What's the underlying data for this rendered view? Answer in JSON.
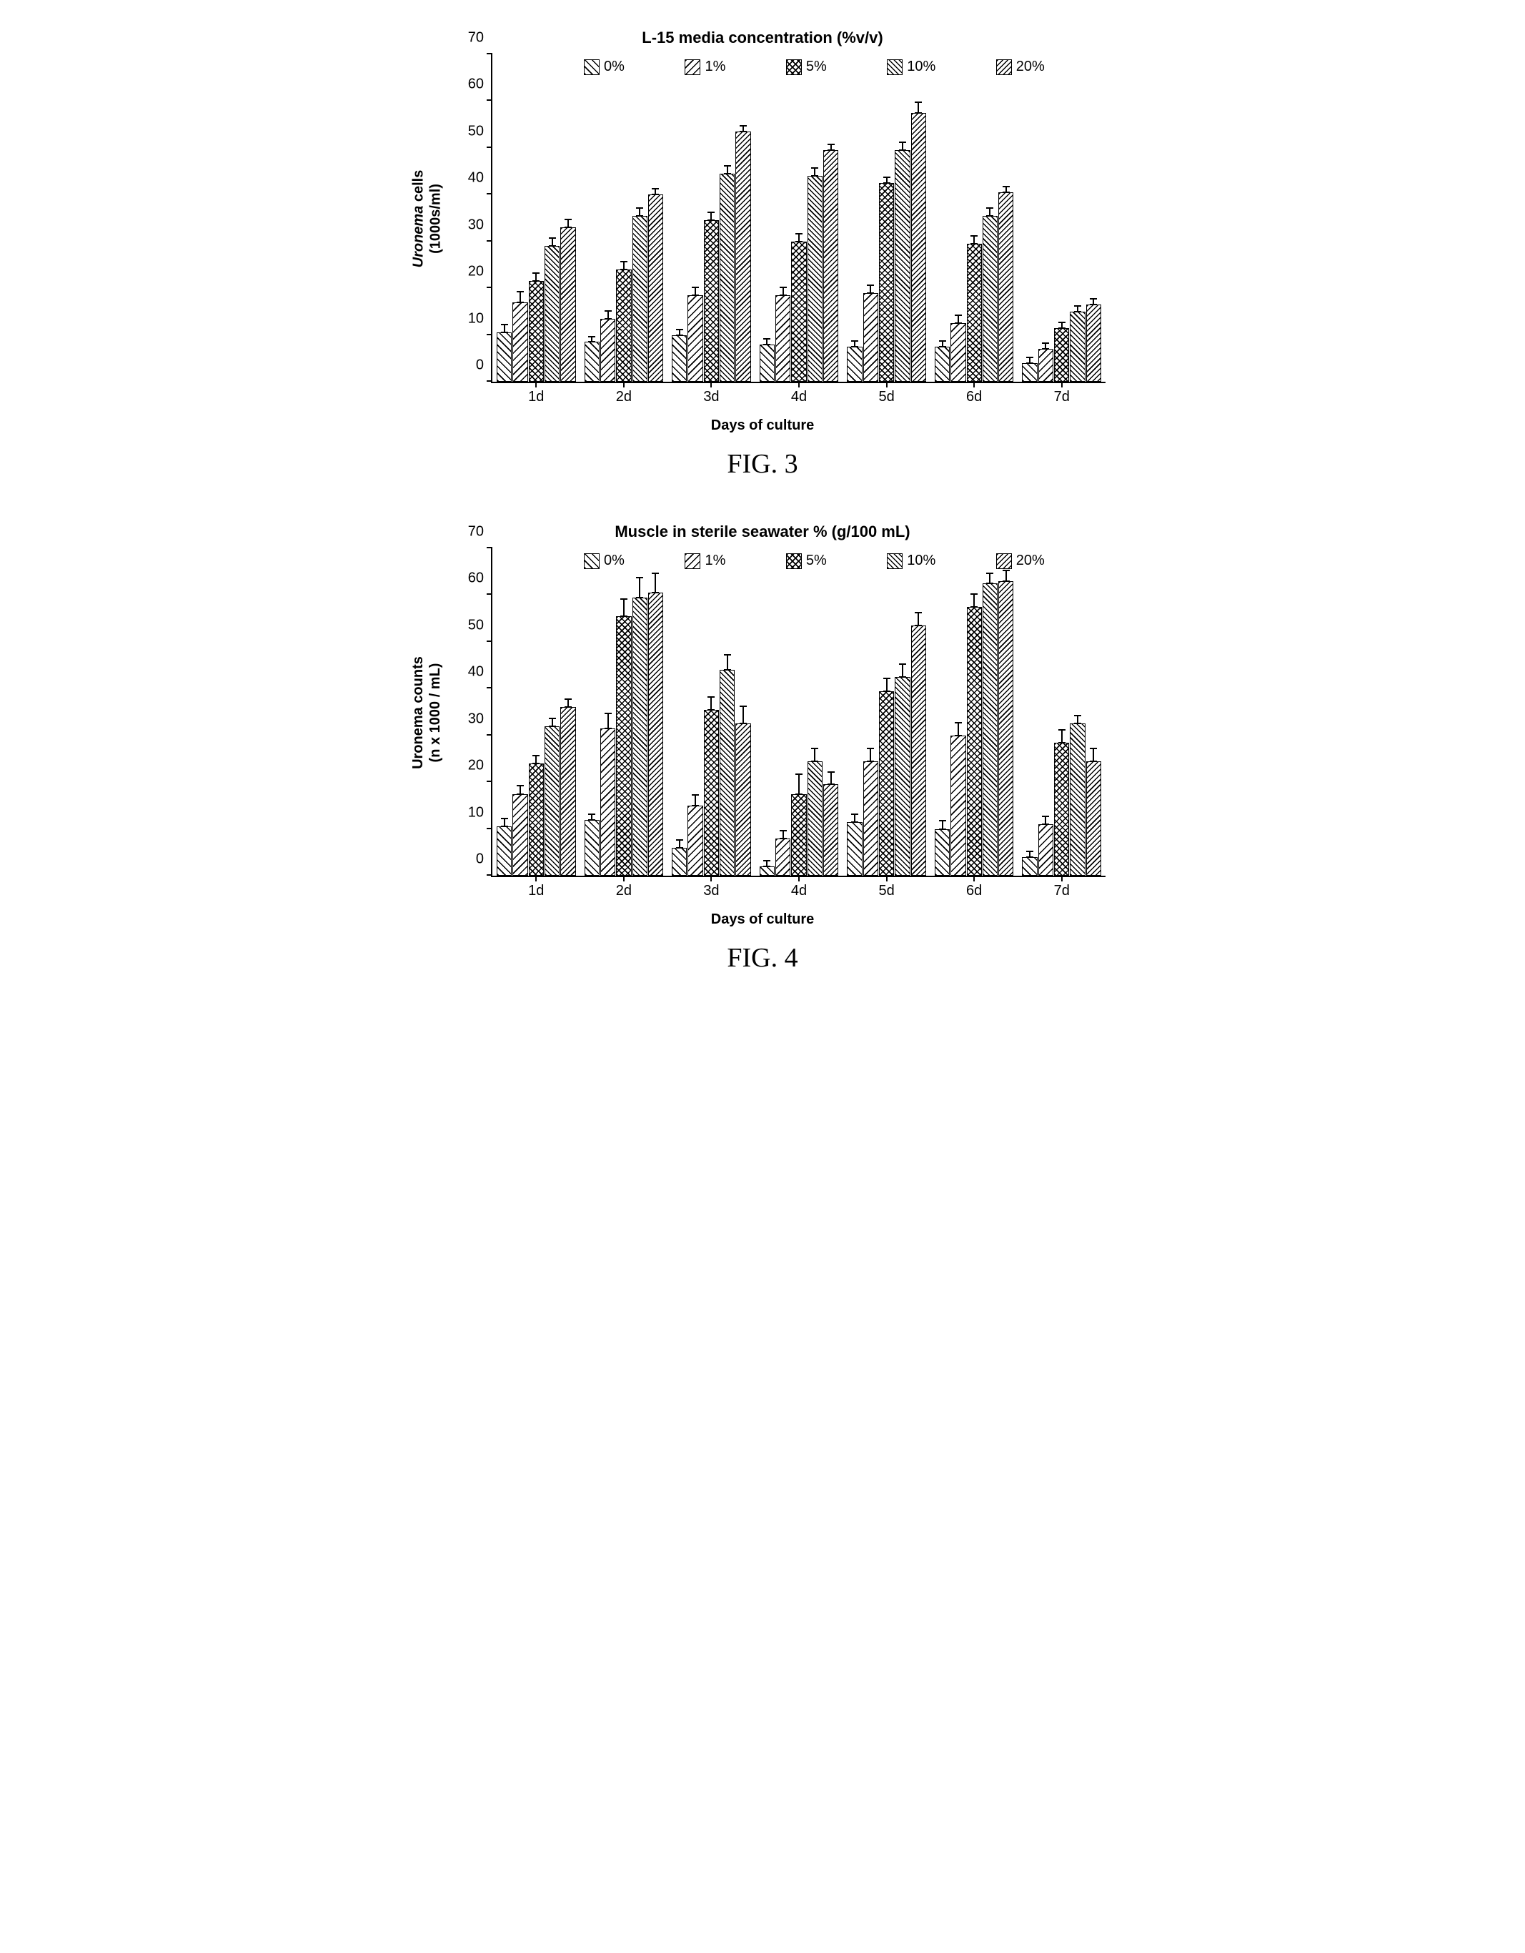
{
  "patterns": {
    "diag45": "repeating-linear-gradient(45deg,#000 0 1.5px,transparent 1.5px 7px)",
    "diag135": "repeating-linear-gradient(135deg,#000 0 1.5px,transparent 1.5px 7px)",
    "cross": "repeating-linear-gradient(45deg,#000 0 1.5px,transparent 1.5px 6px),repeating-linear-gradient(135deg,#000 0 1.5px,transparent 1.5px 6px)",
    "diag45b": "repeating-linear-gradient(45deg,#000 0 1.5px,transparent 1.5px 5px)",
    "diag135b": "repeating-linear-gradient(135deg,#000 0 1.5px,transparent 1.5px 5px)"
  },
  "series": [
    {
      "key": "0%",
      "label": "0%",
      "pattern": "diag45"
    },
    {
      "key": "1%",
      "label": "1%",
      "pattern": "diag135"
    },
    {
      "key": "5%",
      "label": "5%",
      "pattern": "cross"
    },
    {
      "key": "10%",
      "label": "10%",
      "pattern": "diag45b"
    },
    {
      "key": "20%",
      "label": "20%",
      "pattern": "diag135b"
    }
  ],
  "figures": [
    {
      "id": "fig3",
      "title": "L-15 media concentration (%v/v)",
      "ylabel_lines": [
        "<span class=\"line1\">Uronema</span> cells",
        "(1000s/ml)"
      ],
      "xlabel": "Days of culture",
      "caption": "FIG. 3",
      "ymax": 70,
      "ytick_step": 10,
      "ylabel_fontsize": 20,
      "title_fontsize": 22,
      "categories": [
        "1d",
        "2d",
        "3d",
        "4d",
        "5d",
        "6d",
        "7d"
      ],
      "data": {
        "1d": {
          "values": [
            10.5,
            17,
            21.5,
            29,
            33
          ],
          "err": [
            2,
            2.5,
            2,
            2,
            2
          ]
        },
        "2d": {
          "values": [
            8.5,
            13.5,
            24,
            35.5,
            40
          ],
          "err": [
            1.5,
            2,
            2,
            2,
            1.5
          ]
        },
        "3d": {
          "values": [
            10,
            18.5,
            34.5,
            44.5,
            53.5
          ],
          "err": [
            1.5,
            2,
            2,
            2,
            1.5
          ]
        },
        "4d": {
          "values": [
            8,
            18.5,
            30,
            44,
            49.5
          ],
          "err": [
            1.5,
            2,
            2,
            2,
            1.5
          ]
        },
        "5d": {
          "values": [
            7.5,
            19,
            42.5,
            49.5,
            57.5
          ],
          "err": [
            1.5,
            2,
            1.5,
            2,
            2.5
          ]
        },
        "6d": {
          "values": [
            7.5,
            12.5,
            29.5,
            35.5,
            40.5
          ],
          "err": [
            1.5,
            2,
            2,
            2,
            1.5
          ]
        },
        "7d": {
          "values": [
            4,
            7,
            11.5,
            15,
            16.5
          ],
          "err": [
            1.5,
            1.5,
            1.5,
            1.5,
            1.5
          ]
        }
      }
    },
    {
      "id": "fig4",
      "title": "Muscle in sterile seawater % (g/100 mL)",
      "ylabel_lines": [
        "Uronema counts",
        "(n x 1000 / mL)"
      ],
      "xlabel": "Days of culture",
      "caption": "FIG. 4",
      "ymax": 70,
      "ytick_step": 10,
      "ylabel_fontsize": 20,
      "title_fontsize": 22,
      "categories": [
        "1d",
        "2d",
        "3d",
        "4d",
        "5d",
        "6d",
        "7d"
      ],
      "data": {
        "1d": {
          "values": [
            10.5,
            17.5,
            24,
            32,
            36
          ],
          "err": [
            2,
            2,
            2,
            2,
            2
          ]
        },
        "2d": {
          "values": [
            12,
            31.5,
            55.5,
            59.5,
            60.5
          ],
          "err": [
            1.5,
            3.5,
            4,
            4.5,
            4.5
          ]
        },
        "3d": {
          "values": [
            6,
            15,
            35.5,
            44,
            32.5
          ],
          "err": [
            2,
            2.5,
            3,
            3.5,
            4
          ]
        },
        "4d": {
          "values": [
            2,
            8,
            17.5,
            24.5,
            19.5
          ],
          "err": [
            1.5,
            2,
            4.5,
            3,
            3
          ]
        },
        "5d": {
          "values": [
            11.5,
            24.5,
            39.5,
            42.5,
            53.5
          ],
          "err": [
            2,
            3,
            3,
            3,
            3
          ]
        },
        "6d": {
          "values": [
            10,
            30,
            57.5,
            62.5,
            63
          ],
          "err": [
            2,
            3,
            3,
            2.5,
            2.5
          ]
        },
        "7d": {
          "values": [
            4,
            11,
            28.5,
            32.5,
            24.5
          ],
          "err": [
            1.5,
            2,
            3,
            2,
            3
          ]
        }
      }
    }
  ],
  "colors": {
    "axis": "#000000",
    "background": "#ffffff",
    "bar_border": "#000000"
  }
}
